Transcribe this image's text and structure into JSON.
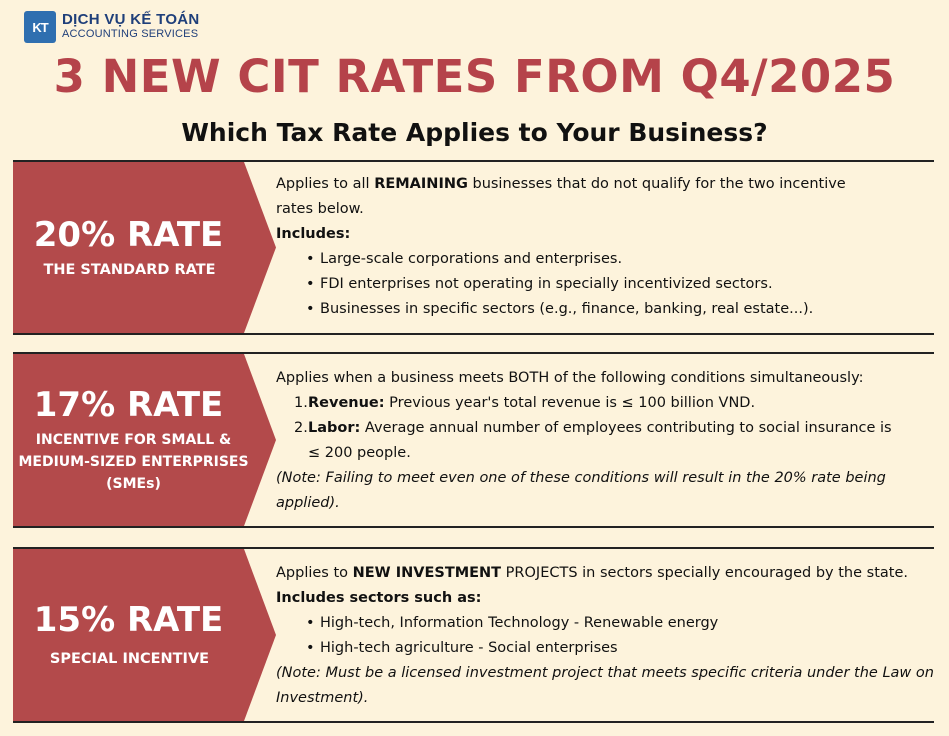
{
  "brand": {
    "logo_mark": "KT",
    "name_vi": "DỊCH VỤ KẾ TOÁN",
    "name_en": "ACCOUNTING SERVICES"
  },
  "title": "3 NEW CIT RATES FROM Q4/2025",
  "subtitle": "Which Tax Rate Applies to Your Business?",
  "rates": [
    {
      "rate": "20% RATE",
      "label": "THE STANDARD RATE",
      "intro_pre": "Applies to all ",
      "intro_bold": "REMAINING",
      "intro_post": " businesses that do not qualify for the two incentive",
      "intro_line2": "rates below.",
      "includes": "Includes:",
      "bullets": [
        "Large-scale corporations and enterprises.",
        "FDI enterprises not operating in specially incentivized sectors.",
        "Businesses in specific sectors (e.g., finance, banking, real estate...)."
      ]
    },
    {
      "rate": "17% RATE",
      "label_lines": [
        "INCENTIVE FOR SMALL &",
        "MEDIUM-SIZED ENTERPRISES",
        "(SMEs)"
      ],
      "intro": "Applies when a business meets BOTH of the following conditions simultaneously:",
      "conditions": [
        {
          "num": "1.",
          "bold": "Revenue:",
          "text": " Previous year's total revenue is ≤ 100 billion VND."
        },
        {
          "num": "2.",
          "bold": "Labor:",
          "text": " Average annual number of employees contributing to social insurance is",
          "text2": "≤ 200 people."
        }
      ],
      "note_line1": "(Note: Failing to meet even one of these conditions will result in the 20% rate being",
      "note_line2": "applied)."
    },
    {
      "rate": "15% RATE",
      "label": "SPECIAL INCENTIVE",
      "intro_pre": "Applies to ",
      "intro_bold": "NEW INVESTMENT",
      "intro_post": " PROJECTS in sectors specially encouraged by the state.",
      "includes": "Includes sectors such as:",
      "bullets": [
        "High-tech, Information Technology - Renewable energy",
        "High-tech agriculture - Social enterprises"
      ],
      "note_line1": "(Note: Must be a licensed investment project that meets specific criteria under the Law on",
      "note_line2": "Investment)."
    }
  ]
}
